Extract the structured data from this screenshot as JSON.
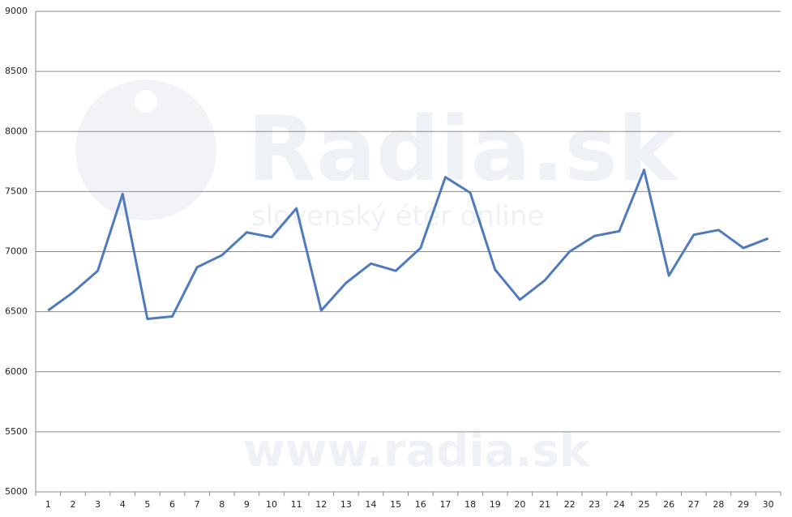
{
  "chart_data": {
    "type": "line",
    "categories": [
      "1",
      "2",
      "3",
      "4",
      "5",
      "6",
      "7",
      "8",
      "9",
      "10",
      "11",
      "12",
      "13",
      "14",
      "15",
      "16",
      "17",
      "18",
      "19",
      "20",
      "21",
      "22",
      "23",
      "24",
      "25",
      "26",
      "27",
      "28",
      "29",
      "30"
    ],
    "series": [
      {
        "color": "#4f7bbd",
        "values": [
          6510,
          6660,
          6840,
          7480,
          6440,
          6460,
          6870,
          6970,
          7160,
          7120,
          7360,
          6510,
          6740,
          6900,
          6840,
          7030,
          7620,
          7490,
          6850,
          6600,
          6760,
          7000,
          7130,
          7170,
          7680,
          6800,
          7140,
          7180,
          7030,
          7110
        ]
      }
    ],
    "ylim": [
      5000,
      9000
    ],
    "yticks": [
      5000,
      5500,
      6000,
      6500,
      7000,
      7500,
      8000,
      8500,
      9000
    ],
    "grid": true,
    "watermark": [
      "Radia.sk",
      "slovenský éter online",
      "www.radia.sk"
    ]
  }
}
